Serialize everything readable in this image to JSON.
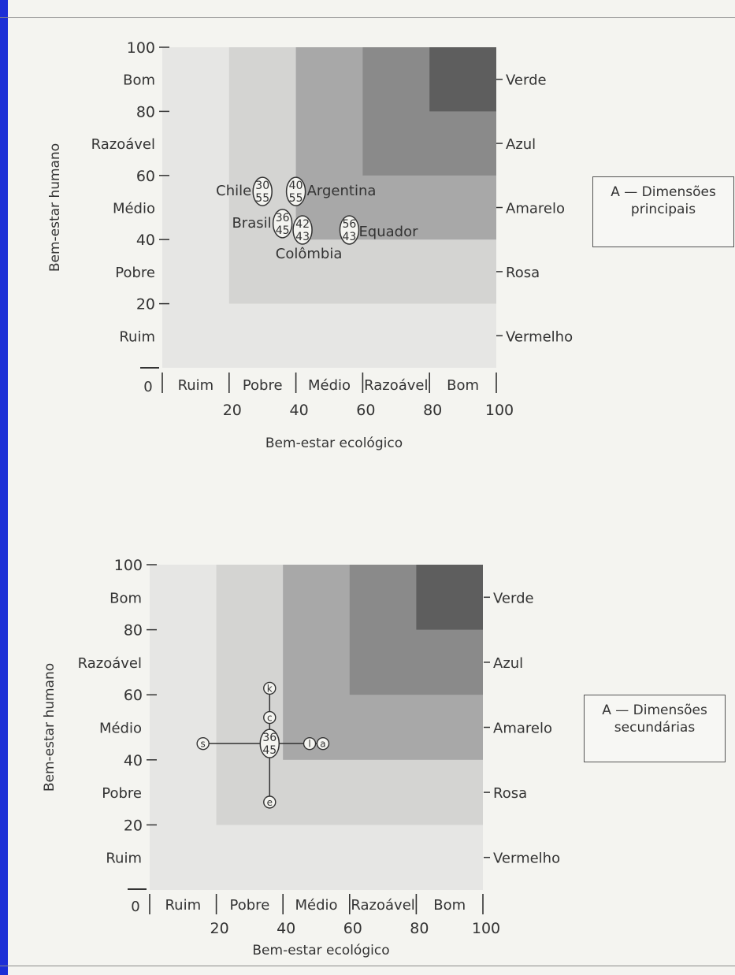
{
  "charts": [
    {
      "chart_data": {
        "type": "scatter",
        "xlabel": "Bem-estar ecológico",
        "ylabel": "Bem-estar humano",
        "xlim": [
          0,
          100
        ],
        "ylim": [
          0,
          100
        ],
        "x_ticks": [
          "0",
          "20",
          "40",
          "60",
          "80",
          "100"
        ],
        "y_ticks": [
          "100",
          "80",
          "60",
          "40",
          "20"
        ],
        "x_bands": [
          "Ruim",
          "Pobre",
          "Médio",
          "Razoável",
          "Bom"
        ],
        "y_bands": [
          "Bom",
          "Razoável",
          "Médio",
          "Pobre",
          "Ruim"
        ],
        "zones": [
          "Verde",
          "Azul",
          "Amarelo",
          "Rosa",
          "Vermelho"
        ],
        "zone_colors": [
          "#4a4a4a",
          "#6a6a6a",
          "#8c8c8c",
          "#b0b0b0",
          "#d6d6d6"
        ],
        "points": [
          {
            "label": "Chile",
            "top": "30",
            "bottom": "55",
            "x": 30,
            "y": 55
          },
          {
            "label": "Argentina",
            "top": "40",
            "bottom": "55",
            "x": 40,
            "y": 55
          },
          {
            "label": "Brasil",
            "top": "36",
            "bottom": "45",
            "x": 36,
            "y": 45
          },
          {
            "label": "Colômbia",
            "top": "42",
            "bottom": "43",
            "x": 42,
            "y": 43
          },
          {
            "label": "Equador",
            "top": "56",
            "bottom": "43",
            "x": 56,
            "y": 43
          }
        ]
      },
      "box_label": [
        "A — Dimensões",
        "principais"
      ]
    },
    {
      "chart_data": {
        "type": "scatter",
        "xlabel": "Bem-estar ecológico",
        "ylabel": "Bem-estar humano",
        "xlim": [
          0,
          100
        ],
        "ylim": [
          0,
          100
        ],
        "x_ticks": [
          "0",
          "20",
          "40",
          "60",
          "80",
          "100"
        ],
        "y_ticks": [
          "100",
          "80",
          "60",
          "40",
          "20"
        ],
        "x_bands": [
          "Ruim",
          "Pobre",
          "Médio",
          "Razoável",
          "Bom"
        ],
        "y_bands": [
          "Bom",
          "Razoável",
          "Médio",
          "Pobre",
          "Ruim"
        ],
        "zones": [
          "Verde",
          "Azul",
          "Amarelo",
          "Rosa",
          "Vermelho"
        ],
        "zone_colors": [
          "#4a4a4a",
          "#6a6a6a",
          "#8c8c8c",
          "#b0b0b0",
          "#d6d6d6"
        ],
        "center": {
          "top": "36",
          "bottom": "45",
          "x": 36,
          "y": 45
        },
        "dimensions": [
          {
            "label": "k",
            "x": 36,
            "y": 62
          },
          {
            "label": "c",
            "x": 36,
            "y": 53
          },
          {
            "label": "s",
            "x": 16,
            "y": 45
          },
          {
            "label": "l",
            "x": 48,
            "y": 45
          },
          {
            "label": "a",
            "x": 52,
            "y": 45
          },
          {
            "label": "e",
            "x": 36,
            "y": 27
          }
        ]
      },
      "box_label": [
        "A — Dimensões",
        "secundárias"
      ]
    }
  ]
}
